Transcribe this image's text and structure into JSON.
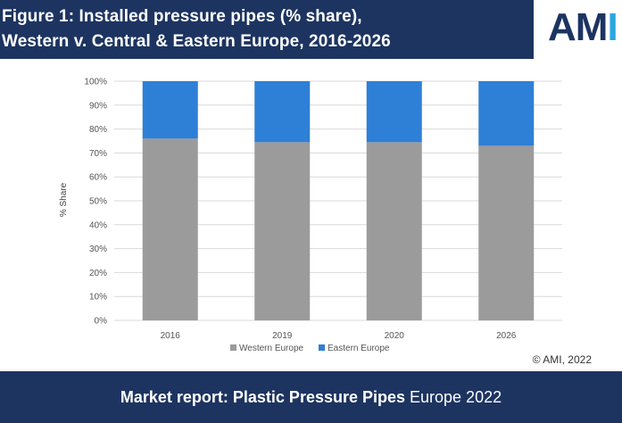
{
  "header": {
    "title_line1": "Figure 1: Installed pressure pipes (% share),",
    "title_line2": "Western v. Central & Eastern Europe, 2016-2026"
  },
  "logo": {
    "text_main": "AM",
    "text_accent": "I"
  },
  "chart_data": {
    "type": "bar",
    "stacked": true,
    "categories": [
      "2016",
      "2019",
      "2020",
      "2026"
    ],
    "series": [
      {
        "name": "Western Europe",
        "values": [
          76,
          74.5,
          74.5,
          73
        ],
        "color": "#9b9b9b"
      },
      {
        "name": "Eastern Europe",
        "values": [
          24,
          25.5,
          25.5,
          27
        ],
        "color": "#2e7fd6"
      }
    ],
    "ylabel": "% Share",
    "ylim": [
      0,
      100
    ],
    "yticks": [
      "0%",
      "10%",
      "20%",
      "30%",
      "40%",
      "50%",
      "60%",
      "70%",
      "80%",
      "90%",
      "100%"
    ],
    "grid": true,
    "legend": "bottom"
  },
  "copyright": "© AMI, 2022",
  "footer": {
    "bold_text": "Market report: Plastic Pressure Pipes",
    "light_text": " Europe 2022"
  }
}
